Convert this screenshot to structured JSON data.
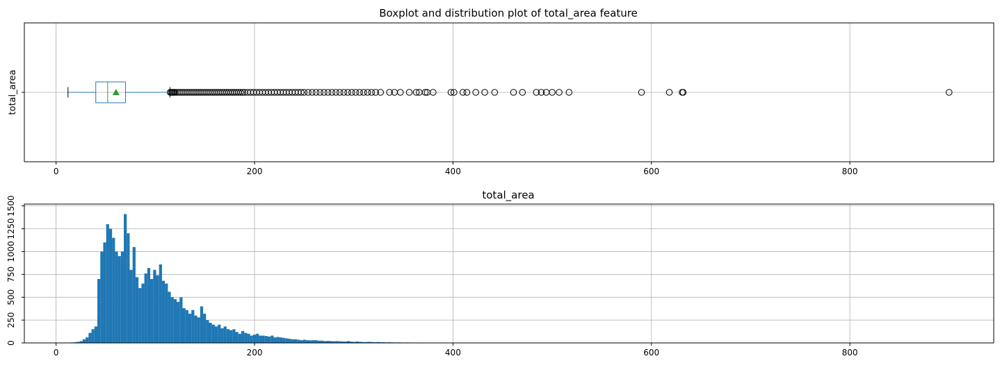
{
  "chart_data": [
    {
      "type": "boxplot",
      "title": "Boxplot and distribution plot of total_area feature",
      "ylabel": "total_area",
      "category": "total_area",
      "orientation": "horizontal",
      "xlim": [
        -32,
        945
      ],
      "xticks": [
        0,
        200,
        400,
        600,
        800
      ],
      "xtick_labels": [
        "0",
        "200",
        "400",
        "600",
        "800"
      ],
      "grid": true,
      "stats": {
        "whisker_low": 12,
        "q1": 40,
        "median": 52,
        "q3": 70,
        "whisker_high": 114.8,
        "mean": 60.4
      },
      "fliers": [
        115,
        116,
        117,
        118,
        119,
        120,
        122,
        124,
        126,
        128,
        130,
        132,
        134,
        136,
        138,
        140,
        142,
        144,
        146,
        148,
        150,
        152,
        154,
        156,
        158,
        160,
        162,
        164,
        166,
        168,
        170,
        172,
        174,
        176,
        178,
        180,
        182,
        184,
        186,
        188,
        190,
        193,
        196,
        199,
        202,
        205,
        208,
        211,
        214,
        217,
        220,
        223,
        226,
        229,
        232,
        235,
        238,
        241,
        244,
        247,
        250,
        254,
        258,
        262,
        266,
        270,
        274,
        278,
        282,
        286,
        290,
        294,
        298,
        302,
        306,
        310,
        314,
        318,
        322,
        327,
        336,
        341,
        347,
        356,
        363,
        366,
        372,
        374,
        380,
        398,
        401,
        410,
        414,
        423,
        432,
        442,
        461,
        470,
        484,
        489,
        494,
        500,
        507,
        517,
        590,
        618,
        631,
        632,
        900
      ],
      "colors": {
        "box": "#1f77b4",
        "median": "#2ca02c",
        "mean_marker": "#2ca02c",
        "flier": "#000000"
      }
    },
    {
      "type": "histogram",
      "title": "total_area",
      "xlim": [
        -32,
        945
      ],
      "ylim": [
        0,
        1520
      ],
      "xticks": [
        0,
        200,
        400,
        600,
        800
      ],
      "xtick_labels": [
        "0",
        "200",
        "400",
        "600",
        "800"
      ],
      "yticks": [
        0,
        250,
        500,
        750,
        1000,
        1250,
        1500
      ],
      "ytick_labels": [
        "0",
        "250",
        "500",
        "750",
        "1000",
        "1250",
        "1500"
      ],
      "grid": true,
      "bin_start": 12,
      "bin_width": 2.96,
      "color": "#1f77b4",
      "counts": [
        3,
        5,
        8,
        12,
        20,
        40,
        60,
        110,
        150,
        180,
        700,
        1000,
        1100,
        1300,
        1250,
        1150,
        1000,
        950,
        1000,
        1410,
        1200,
        800,
        1050,
        720,
        600,
        650,
        760,
        820,
        700,
        800,
        740,
        860,
        680,
        650,
        560,
        500,
        480,
        450,
        500,
        380,
        360,
        320,
        360,
        300,
        280,
        400,
        320,
        250,
        220,
        200,
        180,
        200,
        160,
        180,
        150,
        140,
        150,
        120,
        100,
        130,
        110,
        100,
        80,
        90,
        100,
        80,
        80,
        75,
        70,
        80,
        60,
        65,
        60,
        55,
        50,
        45,
        40,
        40,
        35,
        30,
        35,
        30,
        28,
        30,
        30,
        25,
        25,
        20,
        22,
        20,
        18,
        20,
        18,
        16,
        15,
        20,
        14,
        12,
        15,
        12,
        10,
        10,
        12,
        10,
        8,
        10,
        8,
        8,
        6,
        8,
        6,
        5,
        6,
        5,
        4,
        5,
        4,
        4,
        3,
        4,
        3,
        3,
        2,
        3,
        2,
        2,
        2,
        2,
        1,
        2,
        1,
        2,
        1,
        1,
        1,
        2,
        1,
        1,
        1,
        1,
        0,
        1,
        0,
        1,
        1,
        0,
        1,
        0,
        0,
        1,
        0,
        0,
        1,
        0,
        0,
        0,
        1,
        0,
        0,
        0,
        0,
        1,
        0,
        0,
        0,
        0,
        0,
        1,
        0,
        0,
        0,
        0,
        0,
        0,
        0,
        1,
        0,
        0,
        0,
        0,
        0,
        0,
        0,
        0,
        1,
        0,
        0,
        0,
        0,
        0,
        0,
        0,
        0,
        0,
        0,
        0,
        0,
        0,
        0,
        0,
        0,
        0,
        1,
        0,
        0,
        0,
        0,
        0,
        0,
        0,
        0,
        0,
        0,
        0,
        0,
        0,
        0,
        0,
        0,
        0,
        0,
        0,
        0,
        0,
        0,
        0,
        0,
        0,
        0,
        0,
        0,
        0,
        0,
        0,
        1
      ]
    }
  ]
}
